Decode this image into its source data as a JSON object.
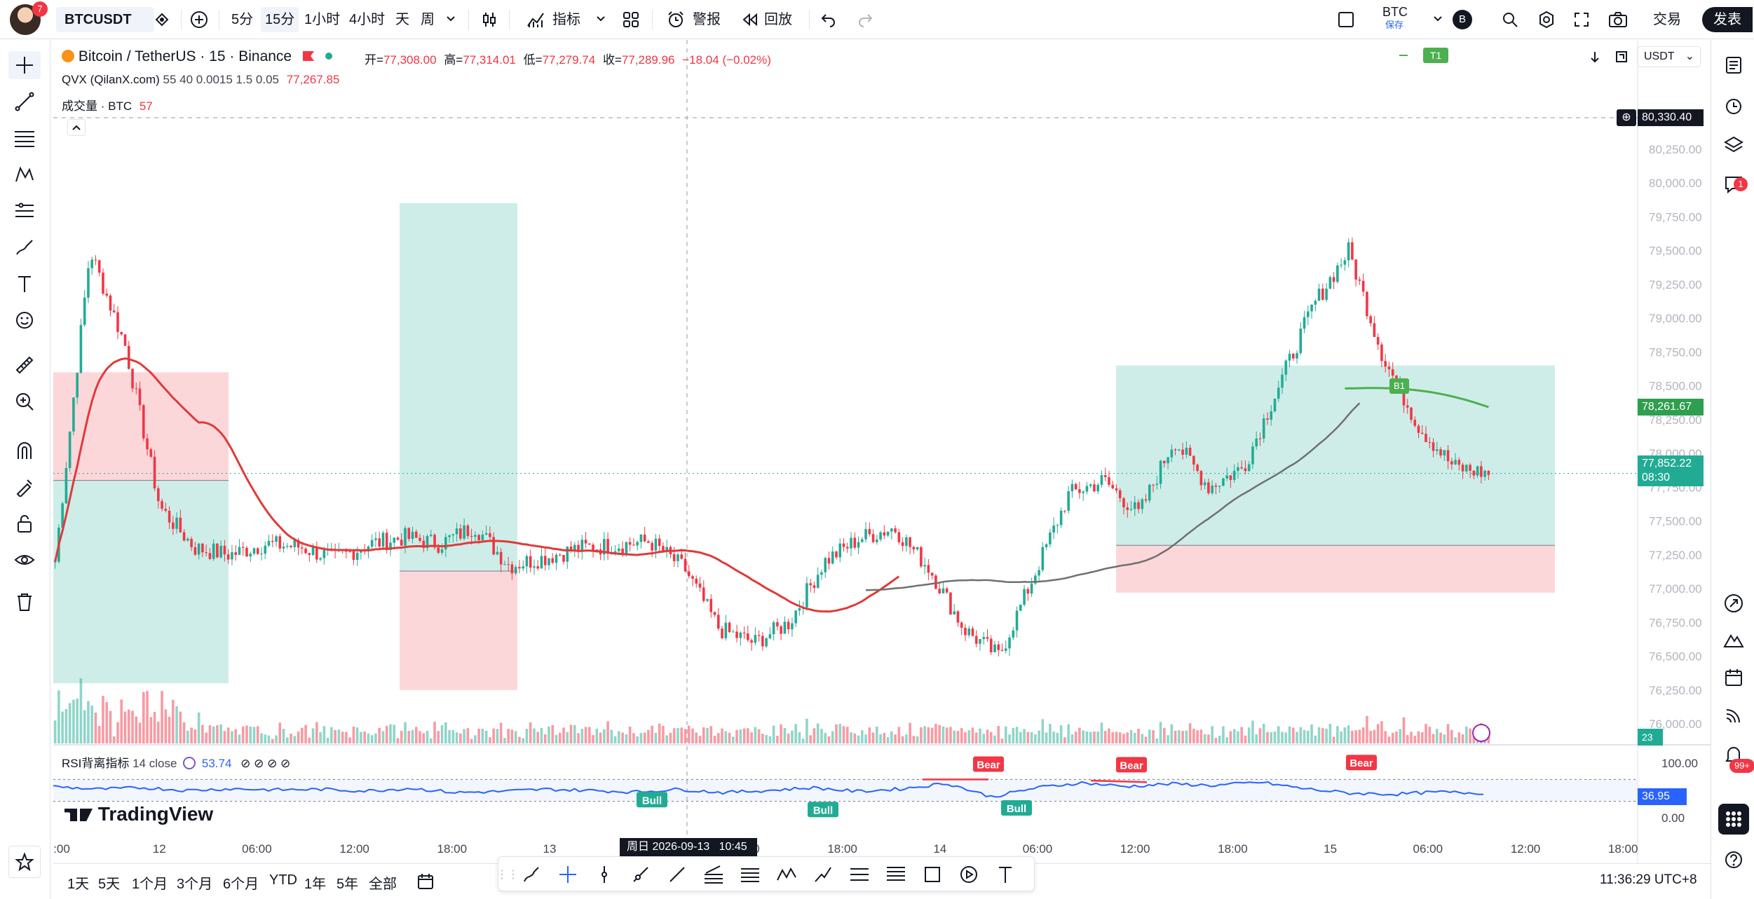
{
  "topbar": {
    "notification_count": "7",
    "symbol": "BTCUSDT",
    "intervals": [
      "5分",
      "15分",
      "1小时",
      "4小时",
      "天",
      "周"
    ],
    "active_interval": "15分",
    "indicators_label": "指标",
    "alert_label": "警报",
    "replay_label": "回放",
    "currency_code": "BTC",
    "save_label": "保存",
    "user_initial": "B",
    "trade_label": "交易",
    "publish_label": "发表"
  },
  "legend": {
    "title": "Bitcoin / TetherUS · 15 · Binance",
    "open_label": "开=",
    "open": "77,308.00",
    "high_label": "高=",
    "high": "77,314.01",
    "low_label": "低=",
    "low": "77,279.74",
    "close_label": "收=",
    "close": "77,289.96",
    "change": "−18.04 (−0.02%)",
    "indicator1_name": "QVX (QilanX.com)",
    "indicator1_params": "55 40 0.0015 1.5 0.05",
    "indicator1_value": "77,267.85",
    "volume_name": "成交量 · BTC",
    "volume_value": "57",
    "rsi_name": "RSI背离指标",
    "rsi_params": "14 close",
    "rsi_value": "53.74"
  },
  "right_panel": {
    "currency_select": "USDT",
    "t1_label": "T1",
    "b1_label": "B1",
    "notification_badge": "1",
    "alerts_badge": "99+"
  },
  "price_labels": {
    "crosshair_price": "80,330.40",
    "ma_price": "78,261.67",
    "last_price": "77,852.22",
    "countdown": "08:30",
    "volume_last": "23",
    "rsi_last": "36.95"
  },
  "rsi_labels": {
    "bull": "Bull",
    "bear": "Bear"
  },
  "crosshair_time": "周日 2026-09-13   10:45",
  "brand": "TradingView",
  "bottombar": {
    "ranges": [
      "1天",
      "5天",
      "1个月",
      "3个月",
      "6个月",
      "YTD",
      "1年",
      "5年",
      "全部"
    ],
    "clock": "11:36:29 UTC+8"
  },
  "colors": {
    "up": "#22ab94",
    "down": "#f23645",
    "ma_red": "#e03a3a",
    "ma_green": "#4caf50",
    "ma_gray": "#707070",
    "rsi_line": "#2962ff"
  },
  "chart_data": {
    "type": "candlestick",
    "symbol": "BTCUSDT",
    "interval": "15",
    "y_ticks": [
      76000,
      76250,
      76500,
      76750,
      77000,
      77250,
      77500,
      77750,
      78000,
      78250,
      78500,
      78750,
      79000,
      79250,
      79500,
      79750,
      80000,
      80250,
      80500
    ],
    "ylim": [
      75850,
      80850
    ],
    "x_ticks": [
      ":00",
      "12",
      "06:00",
      "12:00",
      "18:00",
      "13",
      "06:00",
      "12:00",
      "18:00",
      "14",
      "06:00",
      "12:00",
      "18:00",
      "15",
      "06:00",
      "12:00",
      "18:00"
    ],
    "price_path": [
      77200,
      79500,
      78800,
      77600,
      77300,
      77250,
      77330,
      77310,
      77220,
      77330,
      77380,
      77330,
      77460,
      77170,
      77230,
      77300,
      77320,
      77350,
      77150,
      76700,
      76600,
      76750,
      77200,
      77370,
      77450,
      77150,
      76700,
      76500,
      77100,
      77700,
      77800,
      77550,
      78100,
      77750,
      77900,
      78500,
      79100,
      79500,
      78700,
      78200,
      77900,
      77850
    ],
    "rsi_ylim": [
      0,
      100
    ],
    "rsi_ticks": [
      0,
      100
    ],
    "rsi_path": [
      57,
      52,
      55,
      50,
      53,
      51,
      52,
      49,
      54,
      46,
      48,
      52,
      50,
      47,
      52,
      46,
      50,
      55,
      48,
      53,
      63,
      38,
      55,
      64,
      57,
      62,
      59,
      65,
      53,
      45,
      43,
      47,
      45
    ]
  }
}
